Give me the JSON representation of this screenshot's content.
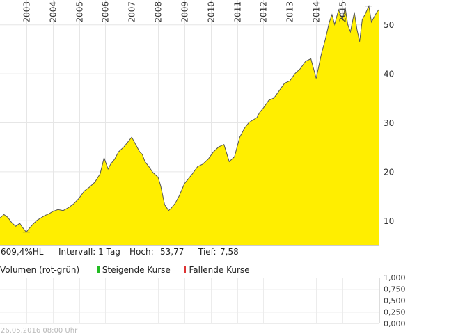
{
  "chart_data": {
    "type": "area",
    "x_tick_labels": [
      "2003",
      "2004",
      "2005",
      "2006",
      "2007",
      "2008",
      "2009",
      "2010",
      "2011",
      "2012",
      "2013",
      "2014",
      "2015"
    ],
    "y_tick_labels": [
      "10",
      "20",
      "30",
      "40",
      "50"
    ],
    "y_ticks": [
      10,
      20,
      30,
      40,
      50
    ],
    "ylim": [
      5,
      55
    ],
    "xlim": [
      2002.0,
      2016.4
    ],
    "grid": true,
    "fill_color": "#ffee00",
    "line_color": "#555555",
    "series": [
      {
        "x": [
          2002.0,
          2002.15,
          2002.3,
          2002.45,
          2002.6,
          2002.75,
          2002.85,
          2003.0,
          2003.1,
          2003.25,
          2003.4,
          2003.55,
          2003.7,
          2003.85,
          2004.0,
          2004.2,
          2004.4,
          2004.6,
          2004.8,
          2005.0,
          2005.2,
          2005.4,
          2005.6,
          2005.8,
          2005.95,
          2006.1,
          2006.2,
          2006.35,
          2006.5,
          2006.7,
          2006.85,
          2007.0,
          2007.15,
          2007.3,
          2007.4,
          2007.5,
          2007.65,
          2007.8,
          2008.0,
          2008.1,
          2008.25,
          2008.4,
          2008.5,
          2008.65,
          2008.8,
          2009.0,
          2009.15,
          2009.3,
          2009.5,
          2009.7,
          2009.9,
          2010.1,
          2010.3,
          2010.5,
          2010.7,
          2010.9,
          2011.1,
          2011.3,
          2011.45,
          2011.6,
          2011.75,
          2011.85,
          2012.0,
          2012.2,
          2012.4,
          2012.6,
          2012.8,
          2013.0,
          2013.2,
          2013.4,
          2013.6,
          2013.8,
          2014.0,
          2014.2,
          2014.35,
          2014.5,
          2014.6,
          2014.7,
          2014.85,
          2015.0,
          2015.1,
          2015.2,
          2015.3,
          2015.45,
          2015.55,
          2015.65,
          2015.75,
          2015.85,
          2016.0,
          2016.1,
          2016.2,
          2016.3,
          2016.38
        ],
        "y": [
          10.5,
          11.2,
          10.6,
          9.5,
          8.8,
          9.4,
          8.6,
          7.6,
          8.3,
          9.2,
          10.0,
          10.5,
          11.0,
          11.3,
          11.8,
          12.2,
          12.0,
          12.6,
          13.4,
          14.5,
          16.0,
          16.8,
          17.8,
          19.5,
          22.8,
          20.5,
          21.5,
          22.5,
          24.0,
          25.0,
          26.0,
          27.0,
          25.5,
          24.0,
          23.5,
          22.0,
          21.0,
          19.8,
          18.8,
          17.0,
          13.2,
          12.0,
          12.5,
          13.5,
          15.0,
          17.5,
          18.5,
          19.5,
          21.0,
          21.5,
          22.5,
          24.0,
          25.0,
          25.5,
          22.0,
          23.0,
          27.0,
          29.0,
          30.0,
          30.5,
          31.0,
          32.0,
          33.0,
          34.5,
          35.0,
          36.5,
          38.0,
          38.5,
          40.0,
          41.0,
          42.5,
          43.0,
          39.0,
          44.0,
          47.0,
          50.5,
          52.0,
          50.0,
          53.0,
          51.0,
          53.5,
          50.0,
          48.5,
          52.5,
          49.0,
          46.5,
          51.0,
          52.0,
          53.77,
          50.5,
          51.5,
          52.5,
          53.0
        ]
      }
    ]
  },
  "stats": {
    "performance": "609,4%HL",
    "interval": "Intervall: 1 Tag",
    "high_label": "Hoch:",
    "high_value": "53,77",
    "low_label": "Tief:",
    "low_value": "7,58"
  },
  "volume": {
    "title": "Volumen (rot-grün)",
    "rising_label": "Steigende Kurse",
    "falling_label": "Fallende Kurse",
    "rising_color": "#22bb22",
    "falling_color": "#dd3333",
    "y_tick_labels": [
      "1,000",
      "0,750",
      "0,500",
      "0,250",
      "0,000"
    ]
  },
  "footer": {
    "timestamp": "26.05.2016 08:00 Uhr"
  }
}
